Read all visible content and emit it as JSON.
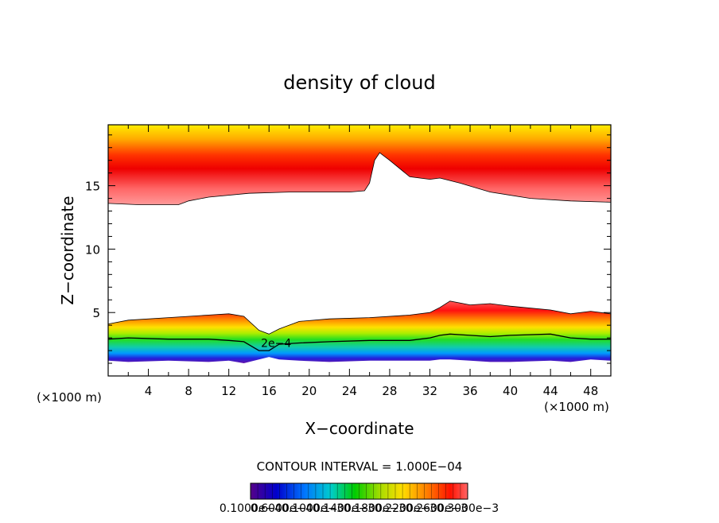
{
  "chart_data": {
    "type": "heatmap",
    "title": "density of cloud",
    "xlabel": "X−coordinate",
    "ylabel": "Z−coordinate",
    "x_unit_left": "(×1000 m)",
    "x_unit_right": "(×1000 m)",
    "xlim": [
      0,
      50
    ],
    "ylim": [
      0,
      19.8
    ],
    "x_ticks": [
      "4",
      "8",
      "12",
      "16",
      "20",
      "24",
      "28",
      "32",
      "36",
      "40",
      "44",
      "48"
    ],
    "y_ticks": [
      "5",
      "10",
      "15"
    ],
    "contour_interval_text": "CONTOUR INTERVAL = 1.000E−04",
    "contour_label": "2e−4",
    "colorbar_labels": [
      "0.1000e−4",
      "0.6000e−4",
      "0.1000e−3",
      "0.1400e−3",
      "0.1800e−3",
      "0.2200e−3",
      "0.2600e−3",
      "0.3000e−3"
    ],
    "colorbar_min": 1e-05,
    "colorbar_max": 0.0003,
    "upper_layer": {
      "x": [
        0,
        3,
        7,
        8,
        10,
        14,
        18,
        22,
        24,
        25.5,
        26,
        26.5,
        27,
        28,
        30,
        32,
        33,
        35,
        38,
        42,
        46,
        50
      ],
      "base": [
        13.6,
        13.5,
        13.5,
        13.8,
        14.1,
        14.4,
        14.5,
        14.5,
        14.5,
        14.6,
        15.2,
        17.0,
        17.6,
        17.0,
        15.7,
        15.5,
        15.6,
        15.2,
        14.5,
        14.0,
        13.8,
        13.7
      ],
      "top": 19.8
    },
    "lower_layer": {
      "x": [
        0,
        2,
        6,
        10,
        12,
        13.5,
        15,
        16,
        17,
        19,
        22,
        26,
        30,
        32,
        33,
        34,
        36,
        38,
        40,
        44,
        46,
        48,
        50
      ],
      "top": [
        4.1,
        4.4,
        4.6,
        4.8,
        4.9,
        4.7,
        3.6,
        3.3,
        3.7,
        4.3,
        4.5,
        4.6,
        4.8,
        5.0,
        5.4,
        5.9,
        5.6,
        5.7,
        5.5,
        5.2,
        4.9,
        5.1,
        4.9
      ],
      "contour2e4": [
        2.9,
        3.0,
        2.9,
        2.9,
        2.8,
        2.7,
        2.0,
        2.0,
        2.5,
        2.6,
        2.7,
        2.8,
        2.8,
        3.0,
        3.2,
        3.3,
        3.2,
        3.1,
        3.2,
        3.3,
        3.0,
        2.9,
        2.9
      ],
      "base": [
        1.2,
        1.1,
        1.2,
        1.1,
        1.2,
        1.0,
        1.3,
        1.5,
        1.3,
        1.2,
        1.1,
        1.2,
        1.2,
        1.2,
        1.3,
        1.3,
        1.2,
        1.1,
        1.1,
        1.2,
        1.1,
        1.3,
        1.2
      ]
    }
  }
}
